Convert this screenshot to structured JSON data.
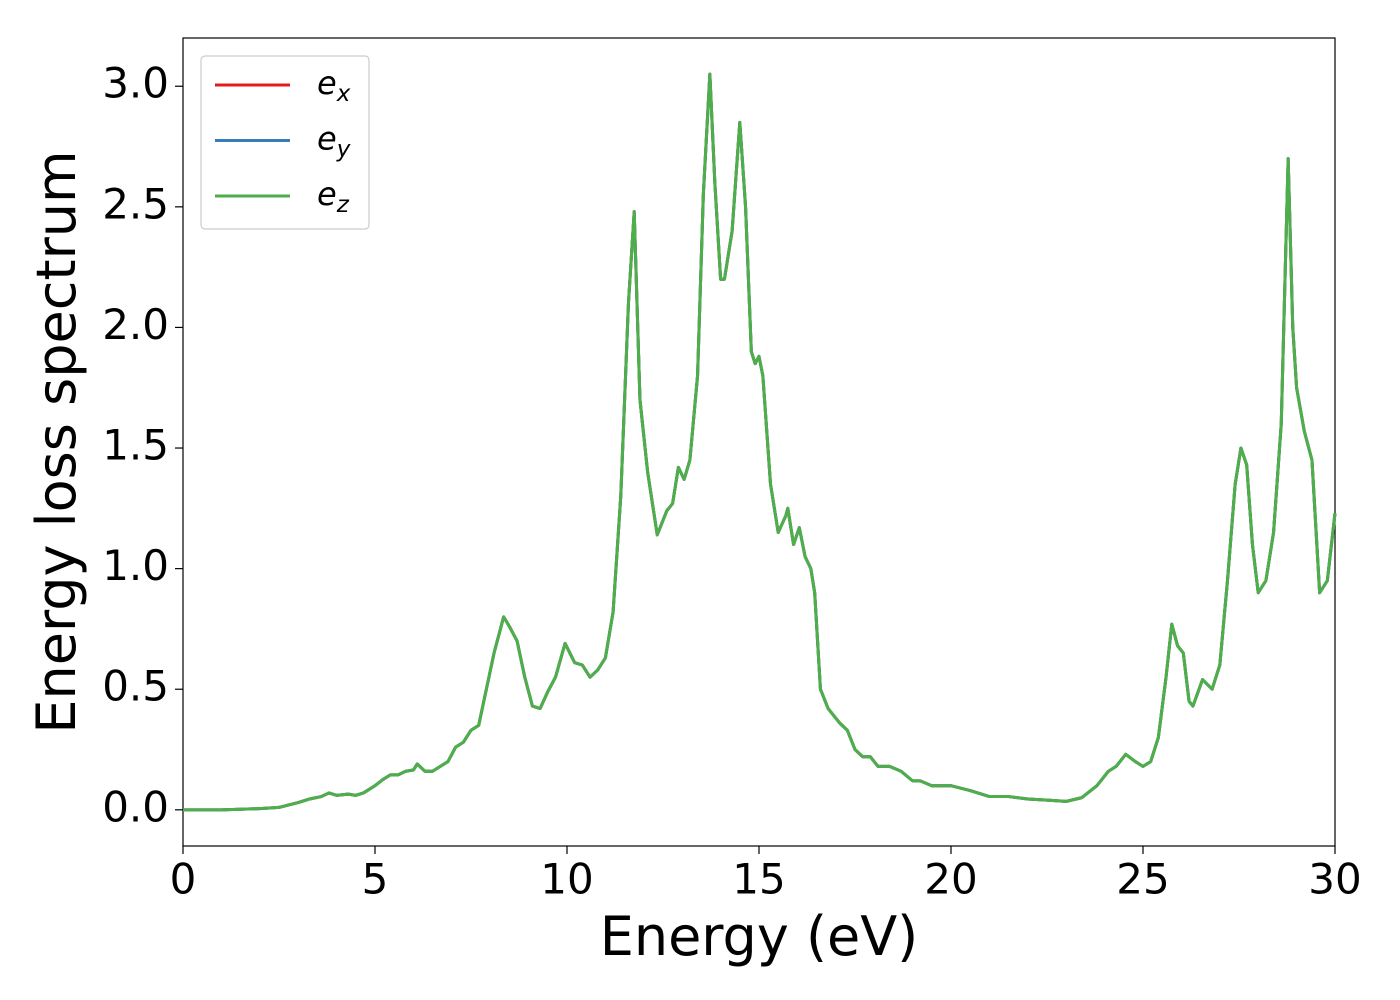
{
  "chart_data": {
    "type": "line",
    "xlabel": "Energy (eV)",
    "ylabel": "Energy loss spectrum",
    "xlim": [
      0,
      30
    ],
    "ylim": [
      -0.15,
      3.2
    ],
    "xticks": [
      0,
      5,
      10,
      15,
      20,
      25,
      30
    ],
    "yticks": [
      {
        "value": 0,
        "label": "0.0"
      },
      0.5,
      {
        "value": 1,
        "label": "1.0"
      },
      1.5,
      {
        "value": 2,
        "label": "2.0"
      },
      2.5,
      {
        "value": 3,
        "label": "3.0"
      }
    ],
    "legend": "upper left",
    "x": [
      0,
      1,
      2,
      2.5,
      3,
      3.3,
      3.6,
      3.8,
      4.0,
      4.3,
      4.5,
      4.7,
      5.0,
      5.2,
      5.4,
      5.6,
      5.8,
      6.0,
      6.1,
      6.3,
      6.5,
      6.7,
      6.9,
      7.1,
      7.3,
      7.5,
      7.7,
      7.9,
      8.1,
      8.35,
      8.5,
      8.7,
      8.9,
      9.1,
      9.3,
      9.5,
      9.7,
      9.95,
      10.2,
      10.4,
      10.6,
      10.8,
      11.0,
      11.2,
      11.4,
      11.6,
      11.75,
      11.9,
      12.1,
      12.35,
      12.6,
      12.75,
      12.9,
      13.05,
      13.2,
      13.4,
      13.55,
      13.72,
      13.85,
      14.0,
      14.1,
      14.3,
      14.5,
      14.65,
      14.8,
      14.9,
      15.0,
      15.1,
      15.3,
      15.5,
      15.7,
      15.75,
      15.9,
      16.05,
      16.2,
      16.35,
      16.45,
      16.6,
      16.8,
      17.1,
      17.3,
      17.5,
      17.7,
      17.9,
      18.1,
      18.4,
      18.7,
      19.0,
      19.2,
      19.5,
      20.0,
      20.5,
      21.0,
      21.5,
      22.0,
      22.5,
      23.0,
      23.4,
      23.8,
      24.1,
      24.3,
      24.55,
      24.8,
      25.0,
      25.2,
      25.4,
      25.6,
      25.75,
      25.9,
      26.05,
      26.2,
      26.3,
      26.55,
      26.8,
      27.0,
      27.2,
      27.4,
      27.55,
      27.7,
      27.85,
      28.0,
      28.2,
      28.4,
      28.6,
      28.78,
      28.9,
      29.0,
      29.2,
      29.4,
      29.6,
      29.8,
      30.0
    ],
    "series": [
      {
        "name": "e_x",
        "color": "#e41a1c",
        "values": [
          0,
          0,
          0.005,
          0.01,
          0.03,
          0.045,
          0.055,
          0.07,
          0.06,
          0.065,
          0.06,
          0.07,
          0.1,
          0.125,
          0.145,
          0.145,
          0.16,
          0.165,
          0.19,
          0.16,
          0.16,
          0.18,
          0.2,
          0.26,
          0.28,
          0.33,
          0.35,
          0.5,
          0.65,
          0.8,
          0.76,
          0.7,
          0.55,
          0.43,
          0.42,
          0.49,
          0.55,
          0.69,
          0.61,
          0.6,
          0.55,
          0.58,
          0.63,
          0.82,
          1.3,
          2.1,
          2.48,
          1.7,
          1.4,
          1.14,
          1.24,
          1.27,
          1.42,
          1.37,
          1.45,
          1.8,
          2.55,
          3.05,
          2.6,
          2.2,
          2.2,
          2.4,
          2.85,
          2.5,
          1.9,
          1.85,
          1.88,
          1.8,
          1.35,
          1.15,
          1.22,
          1.25,
          1.1,
          1.17,
          1.05,
          1.0,
          0.9,
          0.5,
          0.42,
          0.36,
          0.33,
          0.25,
          0.22,
          0.22,
          0.18,
          0.18,
          0.16,
          0.12,
          0.12,
          0.1,
          0.1,
          0.08,
          0.055,
          0.055,
          0.045,
          0.04,
          0.035,
          0.05,
          0.1,
          0.16,
          0.18,
          0.23,
          0.2,
          0.18,
          0.2,
          0.3,
          0.55,
          0.77,
          0.68,
          0.65,
          0.45,
          0.43,
          0.54,
          0.5,
          0.6,
          0.95,
          1.35,
          1.5,
          1.43,
          1.1,
          0.9,
          0.95,
          1.15,
          1.6,
          2.7,
          2.0,
          1.75,
          1.57,
          1.45,
          0.9,
          0.95,
          1.23
        ]
      },
      {
        "name": "e_y",
        "color": "#377eb8",
        "values": [
          0,
          0,
          0.005,
          0.01,
          0.03,
          0.045,
          0.055,
          0.07,
          0.06,
          0.065,
          0.06,
          0.07,
          0.1,
          0.125,
          0.145,
          0.145,
          0.16,
          0.165,
          0.19,
          0.16,
          0.16,
          0.18,
          0.2,
          0.26,
          0.28,
          0.33,
          0.35,
          0.5,
          0.65,
          0.8,
          0.76,
          0.7,
          0.55,
          0.43,
          0.42,
          0.49,
          0.55,
          0.69,
          0.61,
          0.6,
          0.55,
          0.58,
          0.63,
          0.82,
          1.3,
          2.1,
          2.48,
          1.7,
          1.4,
          1.14,
          1.24,
          1.27,
          1.42,
          1.37,
          1.45,
          1.8,
          2.55,
          3.05,
          2.6,
          2.2,
          2.2,
          2.4,
          2.85,
          2.5,
          1.9,
          1.85,
          1.88,
          1.8,
          1.35,
          1.15,
          1.22,
          1.25,
          1.1,
          1.17,
          1.05,
          1.0,
          0.9,
          0.5,
          0.42,
          0.36,
          0.33,
          0.25,
          0.22,
          0.22,
          0.18,
          0.18,
          0.16,
          0.12,
          0.12,
          0.1,
          0.1,
          0.08,
          0.055,
          0.055,
          0.045,
          0.04,
          0.035,
          0.05,
          0.1,
          0.16,
          0.18,
          0.23,
          0.2,
          0.18,
          0.2,
          0.3,
          0.55,
          0.77,
          0.68,
          0.65,
          0.45,
          0.43,
          0.54,
          0.5,
          0.6,
          0.95,
          1.35,
          1.5,
          1.43,
          1.1,
          0.9,
          0.95,
          1.15,
          1.6,
          2.7,
          2.0,
          1.75,
          1.57,
          1.45,
          0.9,
          0.95,
          1.23
        ]
      },
      {
        "name": "e_z",
        "color": "#4daf4a",
        "values": [
          0,
          0,
          0.005,
          0.01,
          0.03,
          0.045,
          0.055,
          0.07,
          0.06,
          0.065,
          0.06,
          0.07,
          0.1,
          0.125,
          0.145,
          0.145,
          0.16,
          0.165,
          0.19,
          0.16,
          0.16,
          0.18,
          0.2,
          0.26,
          0.28,
          0.33,
          0.35,
          0.5,
          0.65,
          0.8,
          0.76,
          0.7,
          0.55,
          0.43,
          0.42,
          0.49,
          0.55,
          0.69,
          0.61,
          0.6,
          0.55,
          0.58,
          0.63,
          0.82,
          1.3,
          2.1,
          2.48,
          1.7,
          1.4,
          1.14,
          1.24,
          1.27,
          1.42,
          1.37,
          1.45,
          1.8,
          2.55,
          3.05,
          2.6,
          2.2,
          2.2,
          2.4,
          2.85,
          2.5,
          1.9,
          1.85,
          1.88,
          1.8,
          1.35,
          1.15,
          1.22,
          1.25,
          1.1,
          1.17,
          1.05,
          1.0,
          0.9,
          0.5,
          0.42,
          0.36,
          0.33,
          0.25,
          0.22,
          0.22,
          0.18,
          0.18,
          0.16,
          0.12,
          0.12,
          0.1,
          0.1,
          0.08,
          0.055,
          0.055,
          0.045,
          0.04,
          0.035,
          0.05,
          0.1,
          0.16,
          0.18,
          0.23,
          0.2,
          0.18,
          0.2,
          0.3,
          0.55,
          0.77,
          0.68,
          0.65,
          0.45,
          0.43,
          0.54,
          0.5,
          0.6,
          0.95,
          1.35,
          1.5,
          1.43,
          1.1,
          0.9,
          0.95,
          1.15,
          1.6,
          2.7,
          2.0,
          1.75,
          1.57,
          1.45,
          0.9,
          0.95,
          1.23
        ]
      }
    ]
  }
}
